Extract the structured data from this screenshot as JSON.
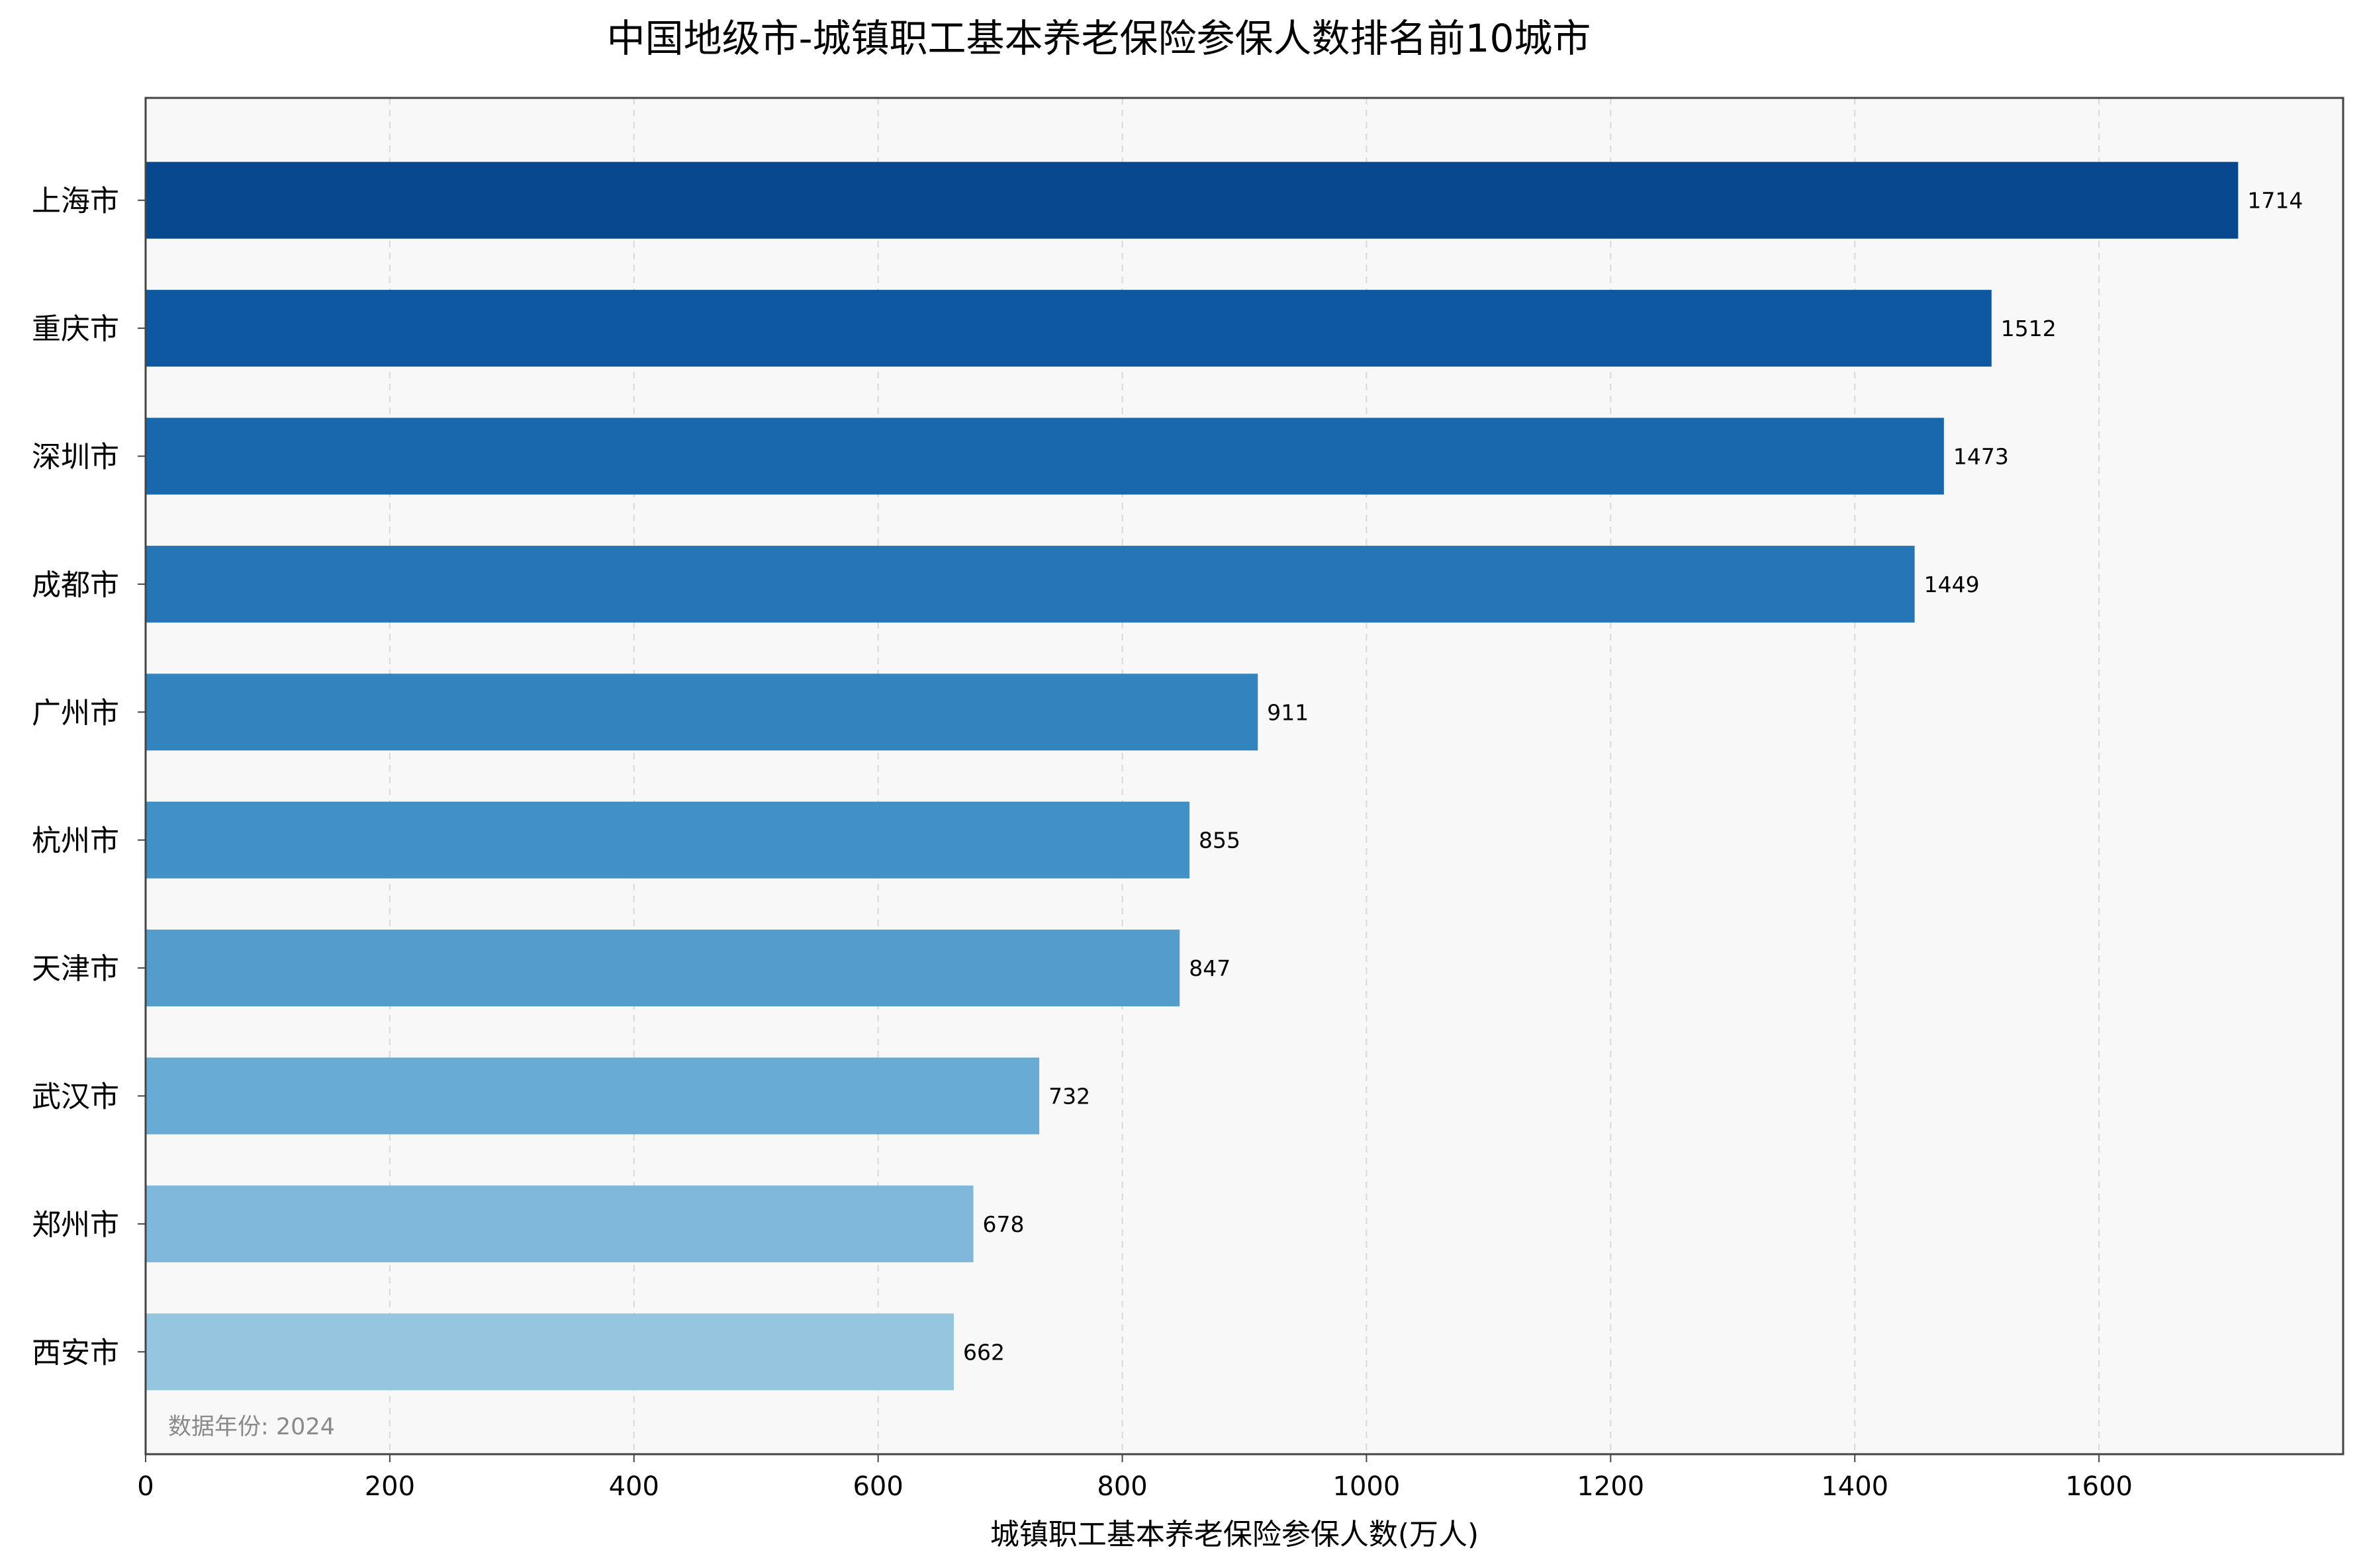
{
  "chart_data": {
    "type": "bar",
    "orientation": "horizontal",
    "title": "中国地级市-城镇职工基本养老保险参保人数排名前10城市",
    "xlabel": "城镇职工基本养老保险参保人数(万人)",
    "ylabel": "",
    "categories": [
      "上海市",
      "重庆市",
      "深圳市",
      "成都市",
      "广州市",
      "杭州市",
      "天津市",
      "武汉市",
      "郑州市",
      "西安市"
    ],
    "values": [
      1714,
      1512,
      1473,
      1449,
      911,
      855,
      847,
      732,
      678,
      662
    ],
    "value_labels": [
      "1714",
      "1512",
      "1473",
      "1449",
      "911",
      "855",
      "847",
      "732",
      "678",
      "662"
    ],
    "xlim": [
      0,
      1800
    ],
    "xticks": [
      0,
      200,
      400,
      600,
      800,
      1000,
      1200,
      1400,
      1600
    ],
    "xtick_labels": [
      "0",
      "200",
      "400",
      "600",
      "800",
      "1000",
      "1200",
      "1400",
      "1600"
    ],
    "grid": "vertical dashed",
    "legend": "none",
    "annotation": "数据年份: 2024",
    "bar_colors": [
      "#08488e",
      "#0e58a2",
      "#1967ad",
      "#2575b7",
      "#3383be",
      "#4191c6",
      "#529dcc",
      "#68abd4",
      "#7fb8da",
      "#95c5df"
    ],
    "plot_background": "#f8f8f8"
  }
}
